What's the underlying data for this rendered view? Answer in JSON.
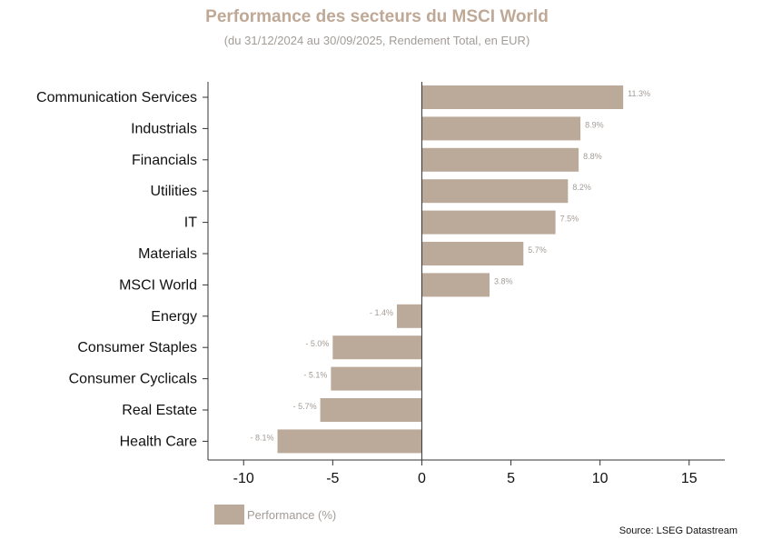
{
  "chart_data": {
    "type": "bar",
    "orientation": "horizontal",
    "title": "Performance des secteurs du MSCI World",
    "subtitle": "(du 31/12/2024 au 30/09/2025, Rendement Total, en EUR)",
    "categories": [
      "Communication Services",
      "Industrials",
      "Financials",
      "Utilities",
      "IT",
      "Materials",
      "MSCI World",
      "Energy",
      "Consumer Staples",
      "Consumer Cyclicals",
      "Real Estate",
      "Health Care"
    ],
    "values": [
      11.3,
      8.9,
      8.8,
      8.2,
      7.5,
      5.7,
      3.8,
      -1.4,
      -5.0,
      -5.1,
      -5.7,
      -8.1
    ],
    "data_labels": [
      "11.3%",
      "8.9%",
      "8.8%",
      "8.2%",
      "7.5%",
      "5.7%",
      "3.8%",
      "- 1.4%",
      "- 5.0%",
      "- 5.1%",
      "- 5.7%",
      "- 8.1%"
    ],
    "xlim": [
      -12,
      17
    ],
    "xticks": [
      -10,
      -5,
      0,
      5,
      10,
      15
    ],
    "xtick_labels": [
      "-10",
      "-5",
      "0",
      "5",
      "10",
      "15"
    ],
    "series_name": "Performance (%)",
    "legend_position": "bottom-left",
    "grid": false,
    "xlabel": "",
    "ylabel": ""
  },
  "source": "Source: LSEG Datastream",
  "colors": {
    "bar": "#bba99a",
    "title": "#bfa996",
    "muted_text": "#a39c97",
    "axis": "#333333"
  }
}
